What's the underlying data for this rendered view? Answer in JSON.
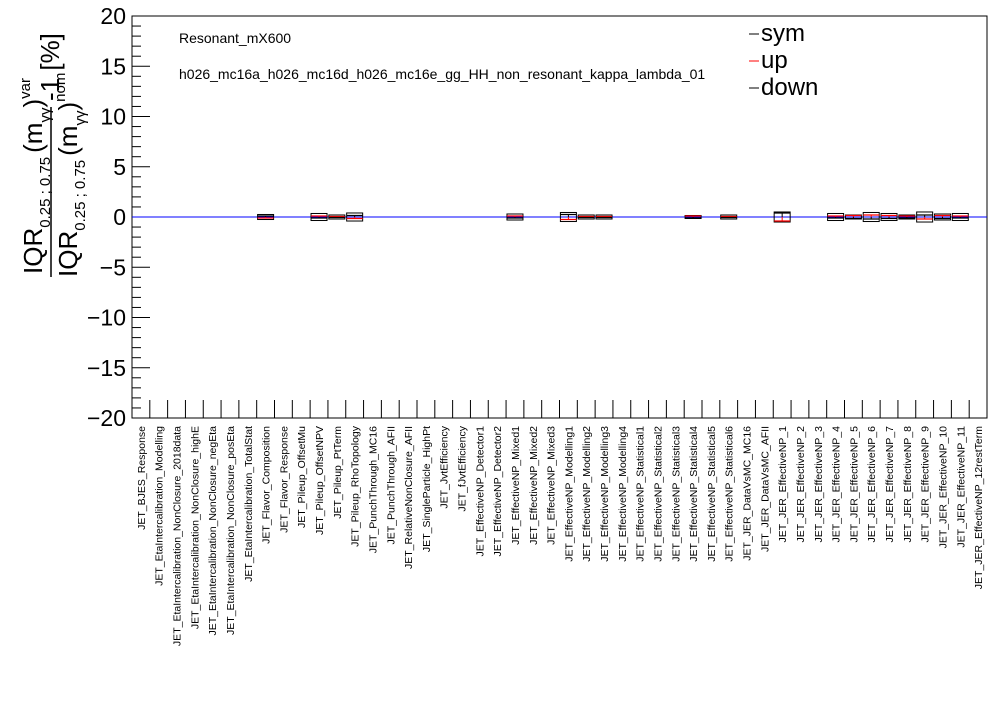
{
  "chart_data": {
    "type": "scatter",
    "title": "",
    "annotation_line1": "Resonant_mX600",
    "annotation_line2": "h026_mc16a_h026_mc16d_h026_mc16e_gg_HH_non_resonant_kappa_lambda_01",
    "ylabel_main": "IQR",
    "ylabel_main_sub": "0.25 ; 0.75",
    "ylabel_main_arg": "(m",
    "ylabel_main_arg_sub": "γγ",
    "ylabel_main_close": ")",
    "ylabel_main_sup": "var",
    "ylabel_den_sup": "nom",
    "ylabel_suffix": "-1 [%]",
    "ylim": [
      -20,
      20
    ],
    "yticks": [
      -20,
      -15,
      -10,
      -5,
      0,
      5,
      10,
      15,
      20
    ],
    "reference_line": 0,
    "reference_color": "#0000ff",
    "legend_position": "top-right",
    "legend": [
      {
        "name": "sym",
        "color": "#000000"
      },
      {
        "name": "up",
        "color": "#ff0000"
      },
      {
        "name": "down",
        "color": "#000000"
      }
    ],
    "categories": [
      "JET_BJES_Response",
      "JET_EtaIntercalibration_Modelling",
      "JET_EtaIntercalibration_NonClosure_2018data",
      "JET_EtaIntercalibration_NonClosure_highE",
      "JET_EtaIntercalibration_NonClosure_negEta",
      "JET_EtaIntercalibration_NonClosure_posEta",
      "JET_EtaIntercalibration_TotalStat",
      "JET_Flavor_Composition",
      "JET_Flavor_Response",
      "JET_Pileup_OffsetMu",
      "JET_Pileup_OffsetNPV",
      "JET_Pileup_PtTerm",
      "JET_Pileup_RhoTopology",
      "JET_PunchThrough_MC16",
      "JET_PunchThrough_AFII",
      "JET_RelativeNonClosure_AFII",
      "JET_SingleParticle_HighPt",
      "JET_JvtEfficiency",
      "JET_fJvtEfficiency",
      "JET_EffectiveNP_Detector1",
      "JET_EffectiveNP_Detector2",
      "JET_EffectiveNP_Mixed1",
      "JET_EffectiveNP_Mixed2",
      "JET_EffectiveNP_Mixed3",
      "JET_EffectiveNP_Modelling1",
      "JET_EffectiveNP_Modelling2",
      "JET_EffectiveNP_Modelling3",
      "JET_EffectiveNP_Modelling4",
      "JET_EffectiveNP_Statistical1",
      "JET_EffectiveNP_Statistical2",
      "JET_EffectiveNP_Statistical3",
      "JET_EffectiveNP_Statistical4",
      "JET_EffectiveNP_Statistical5",
      "JET_EffectiveNP_Statistical6",
      "JET_JER_DataVsMC_MC16",
      "JET_JER_DataVsMC_AFII",
      "JET_JER_EffectiveNP_1",
      "JET_JER_EffectiveNP_2",
      "JET_JER_EffectiveNP_3",
      "JET_JER_EffectiveNP_4",
      "JET_JER_EffectiveNP_5",
      "JET_JER_EffectiveNP_6",
      "JET_JER_EffectiveNP_7",
      "JET_JER_EffectiveNP_8",
      "JET_JER_EffectiveNP_9",
      "JET_JER_EffectiveNP_10",
      "JET_JER_EffectiveNP_11",
      "JET_JER_EffectiveNP_12restTerm"
    ],
    "series": [
      {
        "name": "sym",
        "values": [
          0,
          0,
          0,
          0,
          0,
          0,
          0,
          0,
          0,
          0,
          0,
          0,
          0,
          0,
          0,
          0,
          0,
          0,
          0,
          0,
          0,
          0,
          0,
          0,
          0,
          0,
          0,
          0,
          0,
          0,
          0,
          0,
          0,
          0,
          0,
          0,
          0,
          0,
          0,
          0,
          0,
          0,
          0,
          0,
          0,
          0,
          0,
          0
        ],
        "halfwidth": [
          0,
          0,
          0,
          0,
          0,
          0,
          0,
          0.25,
          0,
          0,
          0.35,
          0.2,
          0.4,
          0,
          0,
          0,
          0,
          0,
          0,
          0,
          0,
          0.3,
          0,
          0,
          0.45,
          0.2,
          0.2,
          0,
          0,
          0,
          0,
          0.15,
          0,
          0.2,
          0,
          0,
          0.5,
          0,
          0,
          0.35,
          0.2,
          0.45,
          0.35,
          0.2,
          0.5,
          0.3,
          0.35,
          0
        ]
      },
      {
        "name": "up",
        "values": [
          0,
          0,
          0,
          0,
          0,
          0,
          0,
          -0.1,
          0,
          0,
          0.1,
          0.05,
          -0.15,
          0,
          0,
          0,
          0,
          0,
          0,
          0,
          0,
          0.1,
          0,
          0,
          -0.25,
          0.05,
          0.05,
          0,
          0,
          0,
          0,
          0.1,
          0,
          0.05,
          0,
          0,
          -0.4,
          0,
          0,
          0.1,
          0.15,
          0.2,
          0.15,
          0.1,
          -0.2,
          0.15,
          0.1,
          0
        ]
      },
      {
        "name": "down",
        "values": [
          0,
          0,
          0,
          0,
          0,
          0,
          0,
          0.1,
          0,
          0,
          -0.1,
          -0.05,
          0.15,
          0,
          0,
          0,
          0,
          0,
          0,
          0,
          0,
          -0.1,
          0,
          0,
          0.25,
          -0.05,
          -0.05,
          0,
          0,
          0,
          0,
          -0.1,
          0,
          -0.05,
          0,
          0,
          0.4,
          0,
          0,
          -0.1,
          -0.15,
          -0.2,
          -0.15,
          -0.1,
          0.2,
          -0.15,
          -0.1,
          0
        ]
      }
    ]
  }
}
